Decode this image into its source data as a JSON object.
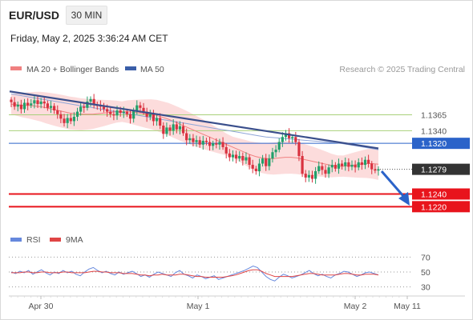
{
  "header": {
    "symbol": "EUR/USD",
    "timeframe": "30 MIN",
    "datetime": "Friday, May 2, 2025 3:36:24 AM CET"
  },
  "legend": {
    "ma20_label": "MA 20 + Bollinger Bands",
    "ma50_label": "MA 50",
    "credit": "Research © 2025 Trading Central",
    "rsi_label": "RSI",
    "rsi_ma_label": "9MA"
  },
  "colors": {
    "candle_up": "#22a06b",
    "candle_down": "#d93240",
    "bollinger": "#fbd0d0",
    "ma20": "#f08080",
    "ma50": "#3a5ea8",
    "trendline": "#3a4f8c",
    "support": "#e8141c",
    "resistance_blue": "#2b63c9",
    "resistance_green": "#a8d07a",
    "price_tag": "#333333",
    "forecast_arrow": "#2b63c9",
    "rsi": "#6688dd",
    "rsi_ma": "#e04545"
  },
  "chart_data": {
    "type": "candlestick",
    "instrument": "EUR/USD",
    "interval": "30 MIN",
    "x_tick_labels": [
      "Apr 30",
      "May 1",
      "May 2",
      "May 11"
    ],
    "y_range": [
      1.118,
      1.142
    ],
    "current_price": 1.1279,
    "levels": [
      {
        "value": 1.1365,
        "label": "1.1365",
        "kind": "resistance"
      },
      {
        "value": 1.134,
        "label": "1.1340",
        "kind": "resistance"
      },
      {
        "value": 1.132,
        "label": "1.1320",
        "kind": "pivot"
      },
      {
        "value": 1.1279,
        "label": "1.1279",
        "kind": "current"
      },
      {
        "value": 1.124,
        "label": "1.1240",
        "kind": "support"
      },
      {
        "value": 1.122,
        "label": "1.1220",
        "kind": "support"
      }
    ],
    "closes": [
      1.1385,
      1.1378,
      1.1381,
      1.1374,
      1.1384,
      1.138,
      1.1383,
      1.1388,
      1.1382,
      1.1386,
      1.1383,
      1.1376,
      1.1379,
      1.1372,
      1.1366,
      1.1359,
      1.1352,
      1.136,
      1.1355,
      1.1362,
      1.137,
      1.1378,
      1.1376,
      1.1386,
      1.139,
      1.1381,
      1.138,
      1.1378,
      1.1374,
      1.137,
      1.1366,
      1.1364,
      1.1372,
      1.1368,
      1.137,
      1.1366,
      1.1359,
      1.1372,
      1.138,
      1.1376,
      1.137,
      1.1362,
      1.1366,
      1.1355,
      1.136,
      1.1348,
      1.1335,
      1.1345,
      1.134,
      1.135,
      1.1342,
      1.1347,
      1.1336,
      1.1325,
      1.1328,
      1.1322,
      1.1325,
      1.1318,
      1.1324,
      1.1322,
      1.1316,
      1.132,
      1.1318,
      1.1322,
      1.1314,
      1.1304,
      1.1298,
      1.1302,
      1.1296,
      1.13,
      1.1293,
      1.1298,
      1.1286,
      1.128,
      1.1276,
      1.1288,
      1.1296,
      1.1284,
      1.1296,
      1.1306,
      1.131,
      1.1322,
      1.133,
      1.1336,
      1.1328,
      1.133,
      1.1322,
      1.13,
      1.1272,
      1.1266,
      1.127,
      1.1264,
      1.1276,
      1.1284,
      1.1278,
      1.1272,
      1.1282,
      1.1286,
      1.128,
      1.1288,
      1.1284,
      1.129,
      1.1283,
      1.1286,
      1.1282,
      1.129,
      1.1286,
      1.1294,
      1.1288,
      1.1279,
      1.1277,
      1.1279
    ],
    "ma20": [
      1.1382,
      1.1381,
      1.138,
      1.138,
      1.1379,
      1.1378,
      1.1376,
      1.1374,
      1.1372,
      1.137,
      1.1368,
      1.1367,
      1.1366,
      1.1366,
      1.1366,
      1.1367,
      1.1368,
      1.1369,
      1.137,
      1.137,
      1.137,
      1.1369,
      1.1368,
      1.1367,
      1.1366,
      1.1364,
      1.1361,
      1.1358,
      1.1354,
      1.135,
      1.1346,
      1.1342,
      1.1338,
      1.1334,
      1.133,
      1.1326,
      1.1322,
      1.1318,
      1.1314,
      1.131,
      1.1306,
      1.1302,
      1.1299,
      1.1297,
      1.1296,
      1.1296,
      1.1297,
      1.1298,
      1.1298,
      1.1297,
      1.1295,
      1.1293,
      1.1291,
      1.1289,
      1.1287,
      1.1285,
      1.1284,
      1.1284,
      1.1285,
      1.1286,
      1.1287,
      1.1288,
      1.1288,
      1.1287
    ],
    "ma50": [
      1.1398,
      1.1396,
      1.1394,
      1.1392,
      1.139,
      1.1388,
      1.1386,
      1.1384,
      1.1382,
      1.138,
      1.1378,
      1.1376,
      1.1374,
      1.1372,
      1.137,
      1.1368,
      1.1366,
      1.1364,
      1.1362,
      1.136,
      1.1358,
      1.1356,
      1.1354,
      1.1352,
      1.135,
      1.1348,
      1.1346,
      1.1344,
      1.1342,
      1.134,
      1.1338,
      1.1336,
      1.1334,
      1.1332,
      1.133,
      1.1329,
      1.1328,
      1.1327,
      1.1326,
      1.1325,
      1.1324,
      1.1323,
      1.1322,
      1.1321,
      1.132,
      1.1318,
      1.1316,
      1.1314,
      1.1312,
      1.131
    ],
    "trendline": {
      "start": 1.1402,
      "end": 1.1312
    },
    "forecast": {
      "from": 1.1276,
      "to": 1.1228
    },
    "rsi": {
      "ticks": [
        70,
        50,
        30
      ],
      "range": [
        20,
        80
      ],
      "values": [
        50,
        48,
        51,
        49,
        52,
        47,
        50,
        53,
        49,
        46,
        50,
        48,
        52,
        49,
        51,
        47,
        45,
        50,
        54,
        56,
        52,
        49,
        51,
        48,
        46,
        50,
        47,
        49,
        51,
        48,
        44,
        46,
        43,
        47,
        50,
        48,
        46,
        44,
        49,
        52,
        47,
        45,
        42,
        46,
        44,
        41,
        43,
        45,
        40,
        42,
        44,
        46,
        48,
        50,
        52,
        55,
        58,
        56,
        50,
        44,
        40,
        38,
        43,
        47,
        45,
        42,
        44,
        46,
        49,
        52,
        48,
        45,
        47,
        44,
        42,
        46,
        48,
        51,
        50,
        47,
        44,
        46,
        49,
        50,
        48,
        46
      ],
      "ma": [
        49,
        49,
        49,
        50,
        50,
        49,
        49,
        50,
        50,
        49,
        49,
        49,
        50,
        50,
        49,
        49,
        49,
        49,
        50,
        51,
        51,
        50,
        50,
        49,
        49,
        49,
        48,
        48,
        48,
        47,
        46,
        46,
        45,
        46,
        46,
        47,
        46,
        46,
        46,
        47,
        47,
        46,
        45,
        44,
        44,
        43,
        43,
        43,
        43,
        43,
        44,
        45,
        46,
        48,
        50,
        52,
        53,
        53,
        51,
        48,
        46,
        44,
        44,
        44,
        44,
        44,
        45,
        46,
        47,
        48,
        48,
        47,
        46,
        46,
        46,
        46,
        47,
        48,
        48,
        47,
        46,
        46,
        47,
        47,
        47,
        46
      ]
    }
  }
}
